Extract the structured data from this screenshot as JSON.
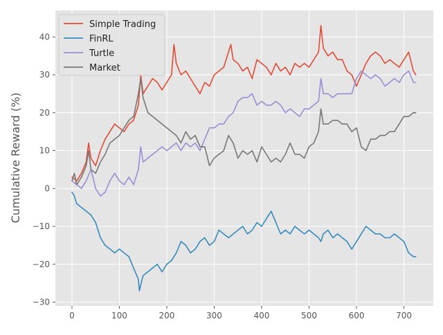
{
  "chart_data": {
    "type": "line",
    "title": "",
    "xlabel": "",
    "ylabel": "Cumulative Reward (%)",
    "xlim": [
      -35,
      762
    ],
    "ylim": [
      -31,
      47
    ],
    "xticks": [
      0,
      100,
      200,
      300,
      400,
      500,
      600,
      700
    ],
    "yticks": [
      -30,
      -20,
      -10,
      0,
      10,
      20,
      30,
      40
    ],
    "grid": true,
    "legend_position": "top-left",
    "style": "ggplot",
    "series": [
      {
        "name": "Simple Trading",
        "color": "#E24A33",
        "x": [
          0,
          10,
          20,
          30,
          35,
          40,
          50,
          60,
          70,
          80,
          90,
          100,
          110,
          120,
          130,
          140,
          145,
          150,
          160,
          170,
          180,
          190,
          200,
          210,
          215,
          220,
          230,
          240,
          250,
          260,
          270,
          280,
          290,
          300,
          310,
          320,
          330,
          335,
          340,
          350,
          360,
          370,
          380,
          390,
          400,
          410,
          420,
          430,
          440,
          450,
          460,
          470,
          480,
          490,
          500,
          510,
          520,
          525,
          530,
          540,
          550,
          560,
          570,
          580,
          590,
          600,
          610,
          620,
          630,
          640,
          650,
          660,
          670,
          680,
          690,
          700,
          710,
          720,
          725
        ],
        "y": [
          3,
          2,
          4,
          7,
          12,
          8,
          6,
          10,
          13,
          15,
          17,
          16,
          15,
          17,
          18,
          22,
          30,
          25,
          27,
          29,
          28,
          26,
          28,
          30,
          38,
          33,
          30,
          31,
          29,
          27,
          25,
          28,
          27,
          30,
          31,
          32,
          36,
          38,
          34,
          33,
          31,
          32,
          29,
          34,
          33,
          32,
          30,
          33,
          31,
          32,
          30,
          33,
          32,
          33,
          32,
          34,
          36,
          43,
          37,
          35,
          36,
          34,
          34,
          31,
          30,
          27,
          30,
          33,
          35,
          36,
          35,
          33,
          34,
          33,
          32,
          34,
          36,
          31,
          30
        ]
      },
      {
        "name": "FinRL",
        "color": "#348ABD",
        "x": [
          0,
          5,
          10,
          20,
          30,
          40,
          50,
          60,
          70,
          80,
          90,
          100,
          110,
          120,
          130,
          140,
          142,
          150,
          160,
          170,
          180,
          190,
          200,
          210,
          220,
          230,
          240,
          250,
          260,
          270,
          280,
          290,
          300,
          310,
          320,
          330,
          340,
          350,
          360,
          370,
          380,
          390,
          400,
          410,
          420,
          430,
          440,
          450,
          460,
          470,
          480,
          490,
          500,
          510,
          520,
          525,
          530,
          540,
          550,
          560,
          570,
          580,
          590,
          600,
          610,
          620,
          630,
          640,
          650,
          660,
          670,
          680,
          690,
          700,
          710,
          720,
          725
        ],
        "y": [
          -1,
          -2,
          -4,
          -5,
          -6,
          -7,
          -9,
          -13,
          -15,
          -16,
          -17,
          -16,
          -17,
          -18,
          -21,
          -24,
          -27,
          -23,
          -22,
          -21,
          -20,
          -22,
          -20,
          -19,
          -17,
          -14,
          -15,
          -17,
          -16,
          -14,
          -13,
          -15,
          -14,
          -11,
          -12,
          -13,
          -12,
          -11,
          -10,
          -12,
          -11,
          -9,
          -10,
          -8,
          -6,
          -9,
          -12,
          -11,
          -12,
          -10,
          -11,
          -12,
          -11,
          -12,
          -13,
          -14,
          -12,
          -11,
          -13,
          -12,
          -13,
          -14,
          -16,
          -14,
          -12,
          -10,
          -11,
          -12,
          -12,
          -13,
          -13,
          -12,
          -13,
          -14,
          -17,
          -18,
          -18
        ]
      },
      {
        "name": "Turtle",
        "color": "#988ED5",
        "x": [
          0,
          10,
          20,
          30,
          40,
          50,
          60,
          70,
          80,
          90,
          100,
          110,
          120,
          130,
          140,
          145,
          150,
          160,
          170,
          180,
          190,
          200,
          210,
          220,
          230,
          240,
          250,
          260,
          270,
          280,
          290,
          300,
          310,
          320,
          330,
          340,
          350,
          360,
          370,
          380,
          390,
          400,
          410,
          420,
          430,
          440,
          450,
          460,
          470,
          480,
          490,
          500,
          510,
          520,
          525,
          530,
          540,
          550,
          560,
          570,
          580,
          590,
          600,
          610,
          620,
          630,
          640,
          650,
          660,
          670,
          680,
          690,
          700,
          710,
          720,
          725
        ],
        "y": [
          2,
          1,
          0,
          2,
          5,
          0,
          -2,
          -1,
          2,
          4,
          2,
          1,
          3,
          1,
          5,
          11,
          7,
          8,
          9,
          10,
          11,
          10,
          11,
          12,
          10,
          12,
          11,
          12,
          10,
          13,
          16,
          16,
          17,
          17,
          19,
          20,
          23,
          24,
          24,
          25,
          22,
          23,
          22,
          22,
          23,
          22,
          20,
          21,
          20,
          19,
          21,
          21,
          22,
          23,
          29,
          25,
          25,
          24,
          25,
          25,
          25,
          25,
          29,
          31,
          30,
          29,
          30,
          29,
          27,
          28,
          29,
          28,
          30,
          31,
          28,
          28
        ]
      },
      {
        "name": "Market",
        "color": "#777777",
        "x": [
          0,
          5,
          10,
          20,
          30,
          35,
          40,
          50,
          60,
          70,
          80,
          90,
          100,
          110,
          120,
          130,
          140,
          145,
          150,
          160,
          170,
          180,
          190,
          200,
          210,
          220,
          230,
          240,
          250,
          260,
          270,
          280,
          290,
          300,
          310,
          320,
          330,
          340,
          350,
          360,
          370,
          380,
          390,
          400,
          410,
          420,
          430,
          440,
          450,
          460,
          470,
          480,
          490,
          500,
          510,
          520,
          525,
          530,
          540,
          550,
          560,
          570,
          580,
          590,
          600,
          610,
          620,
          630,
          640,
          650,
          660,
          670,
          680,
          690,
          700,
          710,
          720,
          725
        ],
        "y": [
          2,
          4,
          1,
          3,
          6,
          10,
          5,
          4,
          7,
          9,
          12,
          13,
          14,
          16,
          18,
          19,
          25,
          29,
          24,
          20,
          19,
          18,
          17,
          16,
          15,
          14,
          12,
          15,
          13,
          14,
          11,
          11,
          6,
          8,
          9,
          10,
          14,
          12,
          8,
          10,
          9,
          10,
          7,
          11,
          9,
          7,
          8,
          7,
          9,
          12,
          9,
          9,
          8,
          11,
          12,
          15,
          21,
          17,
          17,
          18,
          18,
          17,
          17,
          15,
          16,
          11,
          10,
          13,
          13,
          14,
          14,
          15,
          15,
          17,
          19,
          19,
          20,
          20
        ]
      }
    ]
  }
}
